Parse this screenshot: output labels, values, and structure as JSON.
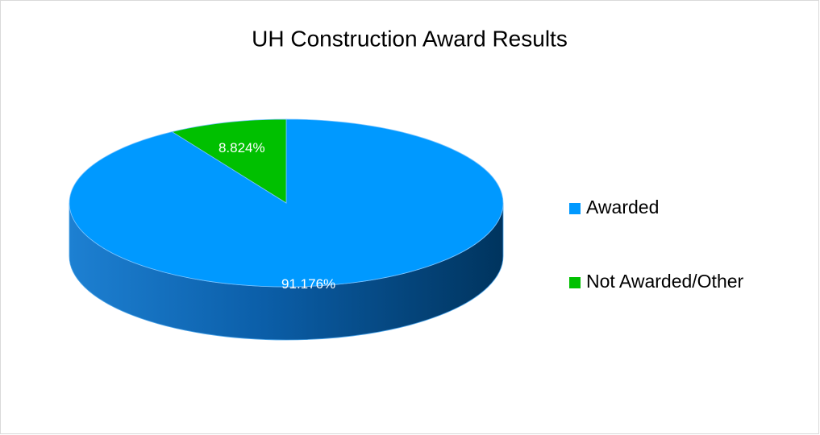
{
  "chart_data": {
    "type": "pie",
    "title": "UH Construction Award Results",
    "categories": [
      "Awarded",
      "Not Awarded/Other"
    ],
    "values": [
      91.176,
      8.824
    ],
    "value_labels": [
      "91.176%",
      "8.824%"
    ],
    "colors": [
      "#0099ff",
      "#00c000"
    ],
    "legend": "right"
  }
}
